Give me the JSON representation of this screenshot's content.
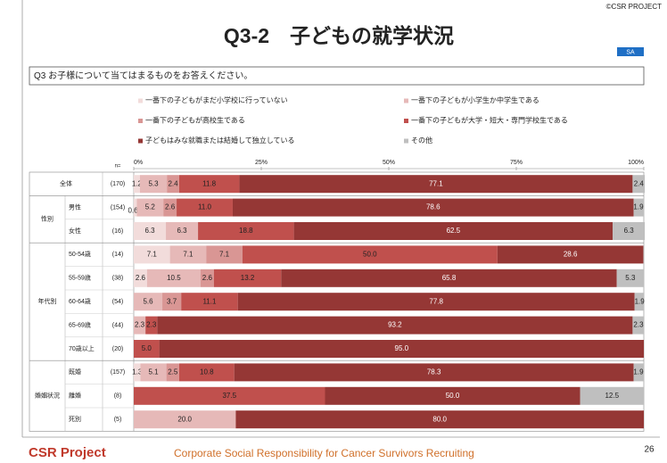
{
  "header": {
    "title": "Q3-2　子どもの就学状況",
    "copyright": "©CSR PROJECT",
    "badge": "SA",
    "question": "Q3  お子様について当てはまるものをお答えください。"
  },
  "chart_data": {
    "type": "stacked-bar-horizontal",
    "n_header": "n=",
    "categories": [
      "全体",
      "男性",
      "女性",
      "50-54歳",
      "55-59歳",
      "60-64歳",
      "65-69歳",
      "70歳以上",
      "既婚",
      "離婚",
      "死別"
    ],
    "n_labels": [
      "(170)",
      "(154)",
      "(16)",
      "(14)",
      "(38)",
      "(54)",
      "(44)",
      "(20)",
      "(157)",
      "(8)",
      "(5)"
    ],
    "groups": [
      {
        "label": "性別",
        "size": 2
      },
      {
        "label": "年代別",
        "size": 5
      },
      {
        "label": "婚姻状況",
        "size": 3
      }
    ],
    "xlim": [
      0,
      100
    ],
    "xticks": [
      {
        "value": 0,
        "label": "0%"
      },
      {
        "value": 25,
        "label": "25%"
      },
      {
        "value": 50,
        "label": "50%"
      },
      {
        "value": 75,
        "label": "75%"
      },
      {
        "value": 100,
        "label": "100%"
      }
    ],
    "series": [
      {
        "name": "一番下の子どもがまだ小学校に行っていない",
        "color": "#f2dcdb",
        "label_color": "#222",
        "values": [
          1.2,
          0.6,
          6.3,
          7.1,
          2.6,
          0,
          0,
          0,
          1.3,
          0,
          0
        ],
        "value_labels": [
          "1.2",
          "0.6",
          "6.3",
          "7.1",
          "2.6",
          null,
          null,
          null,
          "1.3",
          null,
          null
        ]
      },
      {
        "name": "一番下の子どもが小学生か中学生である",
        "color": "#e6b9b8",
        "label_color": "#222",
        "values": [
          5.3,
          5.2,
          6.3,
          7.1,
          10.5,
          5.6,
          2.3,
          0,
          5.1,
          0,
          20.0
        ],
        "value_labels": [
          "5.3",
          "5.2",
          "6.3",
          "7.1",
          "10.5",
          "5.6",
          "2.3",
          null,
          "5.1",
          null,
          "20.0"
        ]
      },
      {
        "name": "一番下の子どもが高校生である",
        "color": "#d99694",
        "label_color": "#222",
        "values": [
          2.4,
          2.6,
          0,
          7.1,
          2.6,
          3.7,
          0,
          0,
          2.5,
          0,
          0
        ],
        "value_labels": [
          "2.4",
          "2.6",
          null,
          "7.1",
          "2.6",
          "3.7",
          null,
          null,
          "2.5",
          null,
          null
        ]
      },
      {
        "name": "一番下の子どもが大学・短大・専門学校生である",
        "color": "#c0504d",
        "label_color": "#222",
        "values": [
          11.8,
          11.0,
          18.8,
          50.0,
          13.2,
          11.1,
          2.3,
          5.0,
          10.8,
          37.5,
          0
        ],
        "value_labels": [
          "11.8",
          "11.0",
          "18.8",
          "50.0",
          "13.2",
          "11.1",
          "2.3",
          "5.0",
          "10.8",
          "37.5",
          null
        ]
      },
      {
        "name": "子どもはみな就職または結婚して独立している",
        "color": "#953735",
        "label_color": "#fff",
        "values": [
          77.1,
          78.6,
          62.5,
          28.6,
          65.8,
          77.8,
          93.2,
          95.0,
          78.3,
          50.0,
          80.0
        ],
        "value_labels": [
          "77.1",
          "78.6",
          "62.5",
          "28.6",
          "65.8",
          "77.8",
          "93.2",
          "95.0",
          "78.3",
          "50.0",
          "80.0"
        ]
      },
      {
        "name": "その他",
        "color": "#bfbfbf",
        "label_color": "#222",
        "values": [
          2.4,
          1.9,
          6.3,
          0,
          5.3,
          1.9,
          2.3,
          0,
          1.9,
          12.5,
          0
        ],
        "value_labels": [
          "2.4",
          "1.9",
          "6.3",
          null,
          "5.3",
          "1.9",
          "2.3",
          null,
          "1.9",
          "12.5",
          null
        ]
      }
    ]
  },
  "footer": {
    "logo": "CSR Project",
    "tagline": "Corporate Social Responsibility for Cancer Survivors Recruiting",
    "page": "26"
  }
}
